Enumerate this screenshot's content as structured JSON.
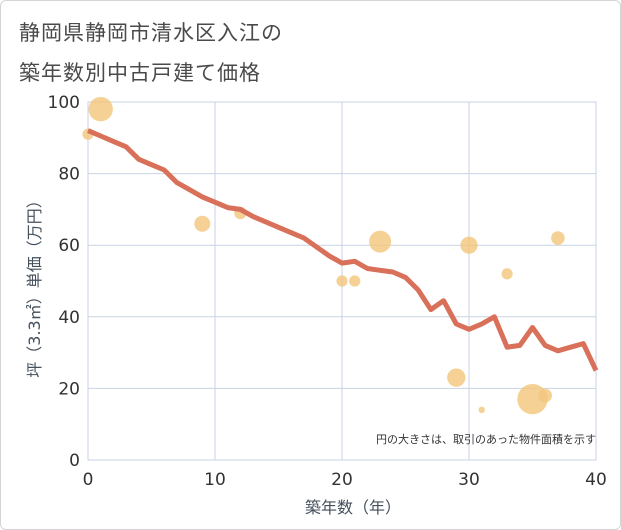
{
  "header": {
    "title_line1": "静岡県静岡市清水区入江の",
    "title_line2": "築年数別中古戸建て価格"
  },
  "colors": {
    "line": "#d9705a",
    "bubble": "#f3c57a",
    "grid": "#c8d3e3",
    "plot_bg": "#ffffff"
  },
  "chart_data": {
    "type": "line",
    "xlabel": "築年数（年）",
    "ylabel": "坪（3.3㎡）単価（万円）",
    "xlim": [
      0,
      40
    ],
    "ylim": [
      0,
      100
    ],
    "xticks": [
      0,
      10,
      20,
      30,
      40
    ],
    "yticks": [
      0,
      20,
      40,
      60,
      80,
      100
    ],
    "grid": true,
    "note": "円の大きさは、取引のあった物件面積を示す",
    "series": [
      {
        "type": "line",
        "x": [
          0,
          1,
          2,
          3,
          4,
          5,
          6,
          7,
          8,
          9,
          10,
          11,
          12,
          13,
          14,
          15,
          16,
          17,
          18,
          19,
          20,
          21,
          22,
          23,
          24,
          25,
          26,
          27,
          28,
          29,
          30,
          31,
          32,
          33,
          34,
          35,
          36,
          37,
          38,
          39,
          40
        ],
        "values": [
          92,
          90.5,
          89,
          87.5,
          84,
          82.5,
          81,
          77.5,
          75.5,
          73.5,
          72,
          70.5,
          70,
          68,
          66.5,
          65,
          63.5,
          62,
          59.5,
          57,
          55,
          55.5,
          53.5,
          53,
          52.5,
          51,
          47.5,
          42,
          44.5,
          38,
          36.5,
          38,
          40,
          31.5,
          32,
          37,
          32,
          30.5,
          31.5,
          32.5,
          25
        ]
      },
      {
        "type": "scatter",
        "points": [
          {
            "x": 0,
            "y": 91,
            "size": 6
          },
          {
            "x": 1,
            "y": 98,
            "size": 17
          },
          {
            "x": 9,
            "y": 66,
            "size": 10
          },
          {
            "x": 12,
            "y": 69,
            "size": 7
          },
          {
            "x": 20,
            "y": 50,
            "size": 6
          },
          {
            "x": 21,
            "y": 50,
            "size": 6
          },
          {
            "x": 23,
            "y": 61,
            "size": 15
          },
          {
            "x": 29,
            "y": 23,
            "size": 12
          },
          {
            "x": 30,
            "y": 60,
            "size": 11
          },
          {
            "x": 31,
            "y": 14,
            "size": 2
          },
          {
            "x": 33,
            "y": 52,
            "size": 6
          },
          {
            "x": 35,
            "y": 17,
            "size": 22
          },
          {
            "x": 36,
            "y": 18,
            "size": 8
          },
          {
            "x": 37,
            "y": 62,
            "size": 8
          }
        ]
      }
    ]
  }
}
